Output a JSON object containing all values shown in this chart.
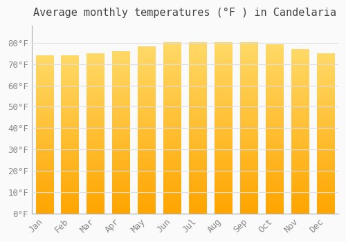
{
  "title": "Average monthly temperatures (°F ) in Candelaria",
  "months": [
    "Jan",
    "Feb",
    "Mar",
    "Apr",
    "May",
    "Jun",
    "Jul",
    "Aug",
    "Sep",
    "Oct",
    "Nov",
    "Dec"
  ],
  "values": [
    74,
    74,
    75,
    76,
    78,
    80,
    80,
    80,
    80,
    79,
    77,
    75
  ],
  "bar_color_bottom": "#FFA500",
  "bar_color_top": "#FFD966",
  "background_color": "#FAFAFA",
  "ylim": [
    0,
    88
  ],
  "yticks": [
    0,
    10,
    20,
    30,
    40,
    50,
    60,
    70,
    80
  ],
  "ytick_labels": [
    "0°F",
    "10°F",
    "20°F",
    "30°F",
    "40°F",
    "50°F",
    "60°F",
    "70°F",
    "80°F"
  ],
  "title_fontsize": 11,
  "tick_fontsize": 9,
  "grid_color": "#DDDDDD",
  "font_family": "monospace"
}
